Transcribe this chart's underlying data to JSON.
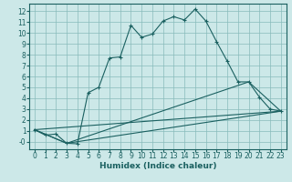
{
  "xlabel": "Humidex (Indice chaleur)",
  "bg_color": "#cce8e8",
  "grid_color": "#88bbbb",
  "line_color": "#1a6060",
  "xlim": [
    -0.5,
    23.5
  ],
  "ylim": [
    -0.7,
    12.7
  ],
  "xticks": [
    0,
    1,
    2,
    3,
    4,
    5,
    6,
    7,
    8,
    9,
    10,
    11,
    12,
    13,
    14,
    15,
    16,
    17,
    18,
    19,
    20,
    21,
    22,
    23
  ],
  "yticks": [
    0,
    1,
    2,
    3,
    4,
    5,
    6,
    7,
    8,
    9,
    10,
    11,
    12
  ],
  "ytick_labels": [
    "-0",
    "1",
    "2",
    "3",
    "4",
    "5",
    "6",
    "7",
    "8",
    "9",
    "10",
    "11",
    "12"
  ],
  "line1_x": [
    0,
    1,
    2,
    3,
    4,
    5,
    6,
    7,
    8,
    9,
    10,
    11,
    12,
    13,
    14,
    15,
    16,
    17,
    18,
    19,
    20,
    21,
    22,
    23
  ],
  "line1_y": [
    1.1,
    0.6,
    0.7,
    -0.15,
    -0.2,
    4.5,
    5.0,
    7.7,
    7.8,
    10.7,
    9.6,
    9.9,
    11.1,
    11.5,
    11.2,
    12.2,
    11.1,
    9.2,
    7.4,
    5.5,
    5.5,
    4.1,
    3.0,
    2.8
  ],
  "line2_x": [
    0,
    3,
    20,
    23
  ],
  "line2_y": [
    1.1,
    -0.15,
    5.5,
    2.8
  ],
  "line3_x": [
    0,
    3,
    23
  ],
  "line3_y": [
    1.1,
    -0.15,
    2.8
  ],
  "line4_x": [
    0,
    23
  ],
  "line4_y": [
    1.1,
    2.8
  ]
}
